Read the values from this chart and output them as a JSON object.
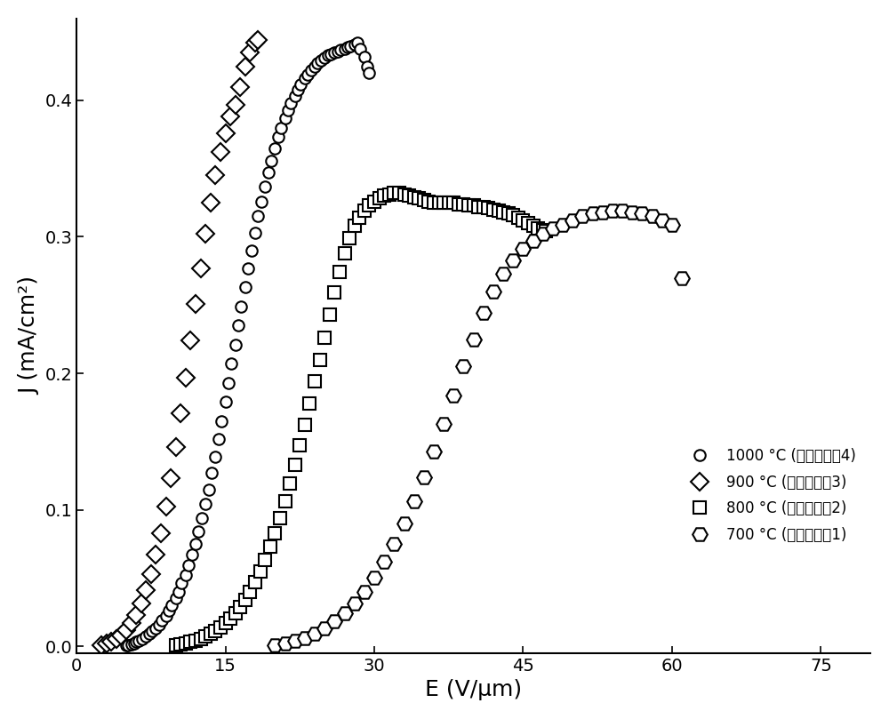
{
  "xlabel": "E (V/μm)",
  "ylabel": "J (mA/cm²)",
  "xlim": [
    0,
    80
  ],
  "ylim": [
    -0.005,
    0.46
  ],
  "xticks": [
    0,
    15,
    30,
    45,
    60,
    75
  ],
  "yticks": [
    0.0,
    0.1,
    0.2,
    0.3,
    0.4
  ],
  "background_color": "#ffffff",
  "circle_1000_x": [
    5.0,
    5.2,
    5.5,
    5.8,
    6.0,
    6.3,
    6.6,
    7.0,
    7.3,
    7.6,
    8.0,
    8.3,
    8.6,
    9.0,
    9.3,
    9.6,
    10.0,
    10.3,
    10.6,
    11.0,
    11.3,
    11.6,
    12.0,
    12.3,
    12.6,
    13.0,
    13.3,
    13.6,
    14.0,
    14.3,
    14.6,
    15.0,
    15.3,
    15.6,
    16.0,
    16.3,
    16.6,
    17.0,
    17.3,
    17.6,
    18.0,
    18.3,
    18.6,
    19.0,
    19.3,
    19.6,
    20.0,
    20.3,
    20.6,
    21.0,
    21.3,
    21.6,
    22.0,
    22.3,
    22.6,
    23.0,
    23.3,
    23.6,
    24.0,
    24.3,
    24.6,
    25.0,
    25.3,
    25.6,
    26.0,
    26.3,
    26.6,
    27.0,
    27.3,
    27.6,
    28.0,
    28.3,
    28.6,
    29.0,
    29.3,
    29.5
  ],
  "circle_1000_y": [
    0.0005,
    0.001,
    0.0015,
    0.002,
    0.003,
    0.004,
    0.005,
    0.007,
    0.009,
    0.011,
    0.013,
    0.016,
    0.019,
    0.022,
    0.026,
    0.03,
    0.035,
    0.04,
    0.046,
    0.052,
    0.059,
    0.067,
    0.075,
    0.084,
    0.094,
    0.104,
    0.115,
    0.127,
    0.139,
    0.152,
    0.165,
    0.179,
    0.193,
    0.207,
    0.221,
    0.235,
    0.249,
    0.263,
    0.277,
    0.29,
    0.303,
    0.315,
    0.326,
    0.337,
    0.347,
    0.356,
    0.365,
    0.373,
    0.38,
    0.387,
    0.393,
    0.398,
    0.403,
    0.408,
    0.412,
    0.416,
    0.419,
    0.422,
    0.425,
    0.427,
    0.429,
    0.431,
    0.433,
    0.434,
    0.435,
    0.436,
    0.437,
    0.438,
    0.439,
    0.44,
    0.441,
    0.442,
    0.438,
    0.432,
    0.425,
    0.42
  ],
  "diamond_900_x": [
    2.5,
    3.0,
    3.5,
    4.0,
    4.5,
    5.0,
    5.5,
    6.0,
    6.5,
    7.0,
    7.5,
    8.0,
    8.5,
    9.0,
    9.5,
    10.0,
    10.5,
    11.0,
    11.5,
    12.0,
    12.5,
    13.0,
    13.5,
    14.0,
    14.5,
    15.0,
    15.5,
    16.0,
    16.5,
    17.0,
    17.5,
    18.0,
    18.3
  ],
  "diamond_900_y": [
    0.001,
    0.002,
    0.003,
    0.005,
    0.008,
    0.012,
    0.017,
    0.023,
    0.031,
    0.041,
    0.053,
    0.067,
    0.083,
    0.102,
    0.123,
    0.146,
    0.171,
    0.197,
    0.224,
    0.251,
    0.277,
    0.302,
    0.325,
    0.345,
    0.362,
    0.376,
    0.388,
    0.397,
    0.41,
    0.425,
    0.435,
    0.442,
    0.444
  ],
  "square_800_x": [
    10.0,
    10.5,
    11.0,
    11.5,
    12.0,
    12.5,
    13.0,
    13.5,
    14.0,
    14.5,
    15.0,
    15.5,
    16.0,
    16.5,
    17.0,
    17.5,
    18.0,
    18.5,
    19.0,
    19.5,
    20.0,
    20.5,
    21.0,
    21.5,
    22.0,
    22.5,
    23.0,
    23.5,
    24.0,
    24.5,
    25.0,
    25.5,
    26.0,
    26.5,
    27.0,
    27.5,
    28.0,
    28.5,
    29.0,
    29.5,
    30.0,
    30.5,
    31.0,
    31.5,
    32.0,
    32.5,
    33.0,
    33.5,
    34.0,
    34.5,
    35.0,
    35.5,
    36.0,
    36.5,
    37.0,
    37.5,
    38.0,
    38.5,
    39.0,
    39.5,
    40.0,
    40.5,
    41.0,
    41.5,
    42.0,
    42.5,
    43.0,
    43.5,
    44.0,
    44.5,
    45.0,
    45.5,
    46.0,
    46.5,
    47.0,
    47.3
  ],
  "square_800_y": [
    0.001,
    0.0015,
    0.002,
    0.003,
    0.004,
    0.005,
    0.007,
    0.009,
    0.011,
    0.014,
    0.017,
    0.02,
    0.024,
    0.029,
    0.034,
    0.04,
    0.047,
    0.055,
    0.063,
    0.073,
    0.083,
    0.094,
    0.106,
    0.119,
    0.133,
    0.147,
    0.162,
    0.178,
    0.194,
    0.21,
    0.226,
    0.243,
    0.259,
    0.274,
    0.288,
    0.299,
    0.308,
    0.314,
    0.319,
    0.323,
    0.326,
    0.328,
    0.33,
    0.331,
    0.332,
    0.332,
    0.331,
    0.33,
    0.329,
    0.328,
    0.327,
    0.326,
    0.325,
    0.325,
    0.325,
    0.325,
    0.325,
    0.324,
    0.324,
    0.323,
    0.323,
    0.322,
    0.322,
    0.321,
    0.32,
    0.319,
    0.318,
    0.317,
    0.316,
    0.314,
    0.312,
    0.31,
    0.308,
    0.306,
    0.305,
    0.304
  ],
  "hexagon_700_x": [
    20.0,
    21.0,
    22.0,
    23.0,
    24.0,
    25.0,
    26.0,
    27.0,
    28.0,
    29.0,
    30.0,
    31.0,
    32.0,
    33.0,
    34.0,
    35.0,
    36.0,
    37.0,
    38.0,
    39.0,
    40.0,
    41.0,
    42.0,
    43.0,
    44.0,
    45.0,
    46.0,
    47.0,
    48.0,
    49.0,
    50.0,
    51.0,
    52.0,
    53.0,
    54.0,
    55.0,
    56.0,
    57.0,
    58.0,
    59.0,
    60.0,
    61.0
  ],
  "hexagon_700_y": [
    0.001,
    0.002,
    0.004,
    0.006,
    0.009,
    0.013,
    0.018,
    0.024,
    0.031,
    0.04,
    0.05,
    0.062,
    0.075,
    0.09,
    0.106,
    0.124,
    0.143,
    0.163,
    0.184,
    0.205,
    0.225,
    0.244,
    0.26,
    0.273,
    0.283,
    0.291,
    0.297,
    0.302,
    0.306,
    0.309,
    0.312,
    0.315,
    0.317,
    0.318,
    0.319,
    0.319,
    0.318,
    0.317,
    0.315,
    0.312,
    0.309,
    0.27
  ],
  "legend_text": [
    "1000 °C (采用实施例4)",
    "900 °C (采用实施例3)",
    "800 °C (采用实施例2)",
    "700 °C (采用实施例1)"
  ],
  "markersize_circle": 9,
  "markersize_diamond": 10,
  "markersize_square": 10,
  "markersize_hex": 12
}
